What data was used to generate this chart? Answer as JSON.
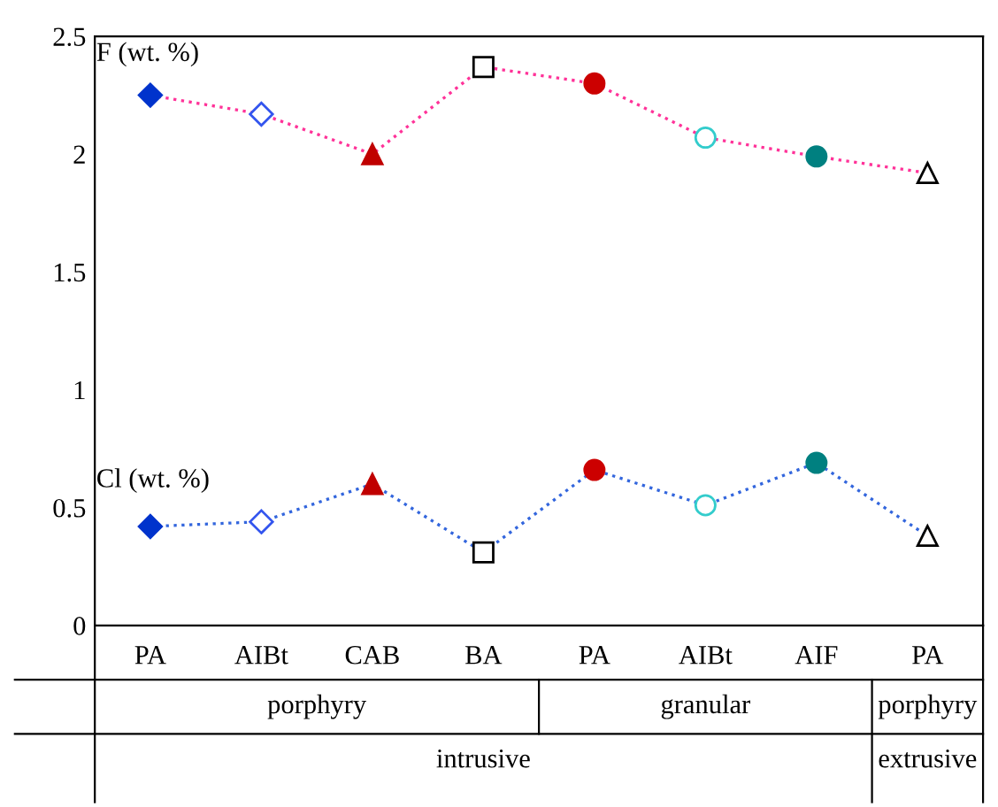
{
  "chart_data": {
    "type": "line",
    "categories": [
      "PA",
      "AIBt",
      "CAB",
      "BA",
      "PA",
      "AIBt",
      "AIF",
      "PA"
    ],
    "series": [
      {
        "name": "F (wt. %)",
        "color": "#ff3399",
        "values": [
          2.25,
          2.17,
          2.0,
          2.37,
          2.3,
          2.07,
          1.99,
          1.92
        ],
        "colors": [
          "#0033cc",
          "#3355ee",
          "#c00000",
          "#000000",
          "#cc0000",
          "#33cccc",
          "#008080",
          "#000000"
        ]
      },
      {
        "name": "Cl (wt. %)",
        "color": "#3366dd",
        "values": [
          0.42,
          0.44,
          0.6,
          0.31,
          0.66,
          0.51,
          0.69,
          0.38
        ],
        "colors": [
          "#0033cc",
          "#3355ee",
          "#c00000",
          "#000000",
          "#cc0000",
          "#33cccc",
          "#008080",
          "#000000"
        ]
      }
    ],
    "marker": [
      "diamond",
      "diamond",
      "triangle",
      "square",
      "circle",
      "circle",
      "circle",
      "triangle"
    ],
    "line_style": "dotted",
    "ylim": [
      0,
      2.5
    ],
    "yticks": [
      0,
      0.5,
      1,
      1.5,
      2,
      2.5
    ],
    "annotations": [
      "porphyry",
      "granular",
      "porphyry",
      "intrusive",
      "extrusive"
    ],
    "grid": false,
    "legend": false
  }
}
